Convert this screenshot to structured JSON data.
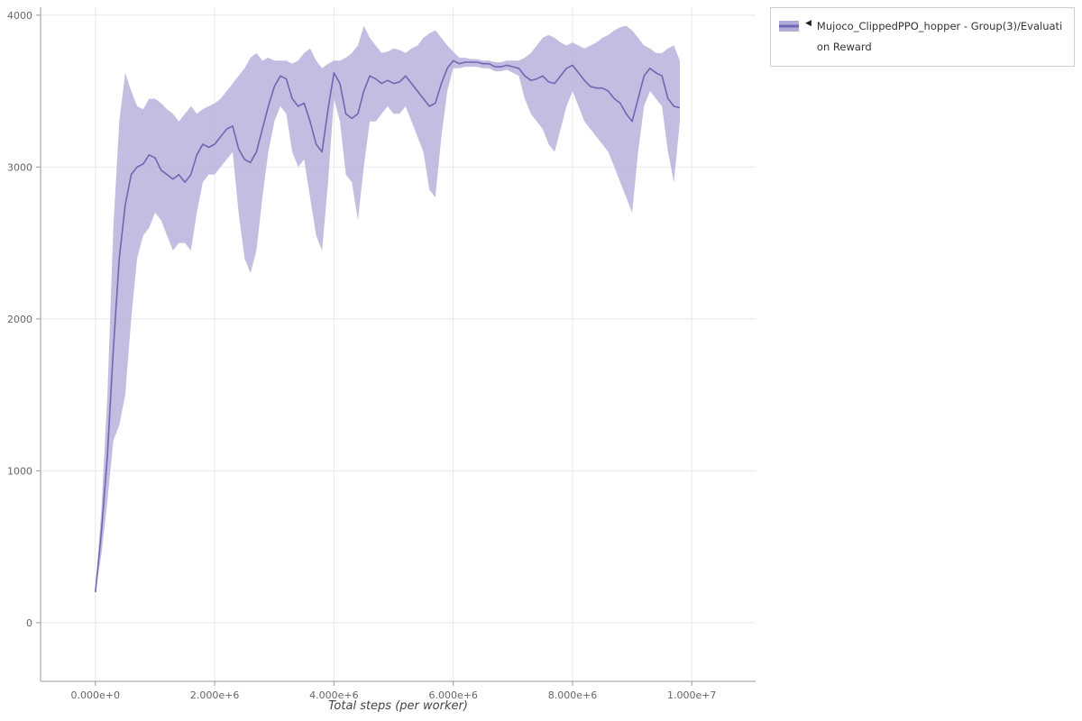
{
  "legend": {
    "collapse_icon": "◀",
    "label": "Mujoco_ClippedPPO_hopper - Group(3)/Evaluation Reward"
  },
  "axes": {
    "x_title": "Total steps (per worker)"
  },
  "chart_data": {
    "type": "line",
    "title": "",
    "xlabel": "Total steps (per worker)",
    "ylabel": "",
    "xlim": [
      -920000,
      11070000
    ],
    "ylim": [
      -386,
      4052
    ],
    "grid": true,
    "legend_position": "top-right",
    "x_ticks": [
      {
        "value": 0,
        "label": "0.000e+0"
      },
      {
        "value": 2000000,
        "label": "2.000e+6"
      },
      {
        "value": 4000000,
        "label": "4.000e+6"
      },
      {
        "value": 6000000,
        "label": "6.000e+6"
      },
      {
        "value": 8000000,
        "label": "8.000e+6"
      },
      {
        "value": 10000000,
        "label": "1.000e+7"
      }
    ],
    "y_ticks": [
      {
        "value": 0,
        "label": "0"
      },
      {
        "value": 1000,
        "label": "1000"
      },
      {
        "value": 2000,
        "label": "2000"
      },
      {
        "value": 3000,
        "label": "3000"
      },
      {
        "value": 4000,
        "label": "4000"
      }
    ],
    "colors": {
      "line": "#6e67b2",
      "band": "#b3acd9",
      "grid": "#e8e8e8",
      "axis": "#9a9a9a",
      "tick_text": "#666666"
    },
    "series": [
      {
        "name": "Mujoco_ClippedPPO_hopper - Group(3)/Evaluation Reward",
        "x_start": 0,
        "x_step": 100000,
        "mean": [
          200,
          600,
          1100,
          1800,
          2400,
          2750,
          2950,
          3000,
          3020,
          3080,
          3060,
          2980,
          2950,
          2920,
          2950,
          2900,
          2950,
          3080,
          3150,
          3130,
          3150,
          3200,
          3250,
          3270,
          3120,
          3050,
          3030,
          3100,
          3250,
          3400,
          3530,
          3600,
          3580,
          3450,
          3400,
          3420,
          3300,
          3150,
          3100,
          3380,
          3620,
          3550,
          3350,
          3320,
          3350,
          3500,
          3600,
          3580,
          3550,
          3570,
          3550,
          3560,
          3600,
          3550,
          3500,
          3450,
          3400,
          3420,
          3550,
          3650,
          3700,
          3680,
          3690,
          3690,
          3690,
          3680,
          3680,
          3660,
          3660,
          3670,
          3660,
          3650,
          3600,
          3570,
          3580,
          3600,
          3560,
          3550,
          3600,
          3650,
          3670,
          3620,
          3570,
          3530,
          3520,
          3520,
          3500,
          3450,
          3420,
          3350,
          3300,
          3450,
          3600,
          3650,
          3620,
          3600,
          3450,
          3400,
          3390
        ],
        "band_low": [
          200,
          450,
          800,
          1200,
          1300,
          1500,
          2000,
          2400,
          2550,
          2600,
          2700,
          2650,
          2550,
          2450,
          2500,
          2500,
          2450,
          2700,
          2900,
          2950,
          2950,
          3000,
          3050,
          3100,
          2700,
          2400,
          2300,
          2450,
          2800,
          3100,
          3300,
          3400,
          3350,
          3100,
          3000,
          3050,
          2800,
          2550,
          2450,
          2900,
          3450,
          3300,
          2950,
          2900,
          2650,
          3000,
          3300,
          3300,
          3350,
          3400,
          3350,
          3350,
          3400,
          3300,
          3200,
          3100,
          2850,
          2800,
          3200,
          3500,
          3650,
          3650,
          3660,
          3660,
          3660,
          3650,
          3650,
          3630,
          3630,
          3640,
          3620,
          3600,
          3450,
          3350,
          3300,
          3250,
          3150,
          3100,
          3250,
          3400,
          3500,
          3400,
          3300,
          3250,
          3200,
          3150,
          3100,
          3000,
          2900,
          2800,
          2700,
          3100,
          3400,
          3500,
          3450,
          3400,
          3100,
          2900,
          3300
        ],
        "band_high": [
          200,
          750,
          1500,
          2600,
          3300,
          3620,
          3500,
          3400,
          3380,
          3450,
          3450,
          3420,
          3380,
          3350,
          3300,
          3350,
          3400,
          3350,
          3380,
          3400,
          3420,
          3450,
          3500,
          3550,
          3600,
          3650,
          3720,
          3750,
          3700,
          3720,
          3700,
          3700,
          3700,
          3680,
          3700,
          3750,
          3780,
          3700,
          3650,
          3680,
          3700,
          3700,
          3720,
          3750,
          3800,
          3930,
          3850,
          3800,
          3750,
          3760,
          3780,
          3770,
          3750,
          3780,
          3800,
          3850,
          3880,
          3900,
          3850,
          3800,
          3760,
          3720,
          3720,
          3710,
          3710,
          3700,
          3700,
          3690,
          3690,
          3700,
          3700,
          3700,
          3720,
          3750,
          3800,
          3850,
          3870,
          3850,
          3820,
          3800,
          3820,
          3800,
          3780,
          3800,
          3820,
          3850,
          3870,
          3900,
          3920,
          3930,
          3900,
          3850,
          3800,
          3780,
          3750,
          3750,
          3780,
          3800,
          3700
        ]
      }
    ]
  }
}
